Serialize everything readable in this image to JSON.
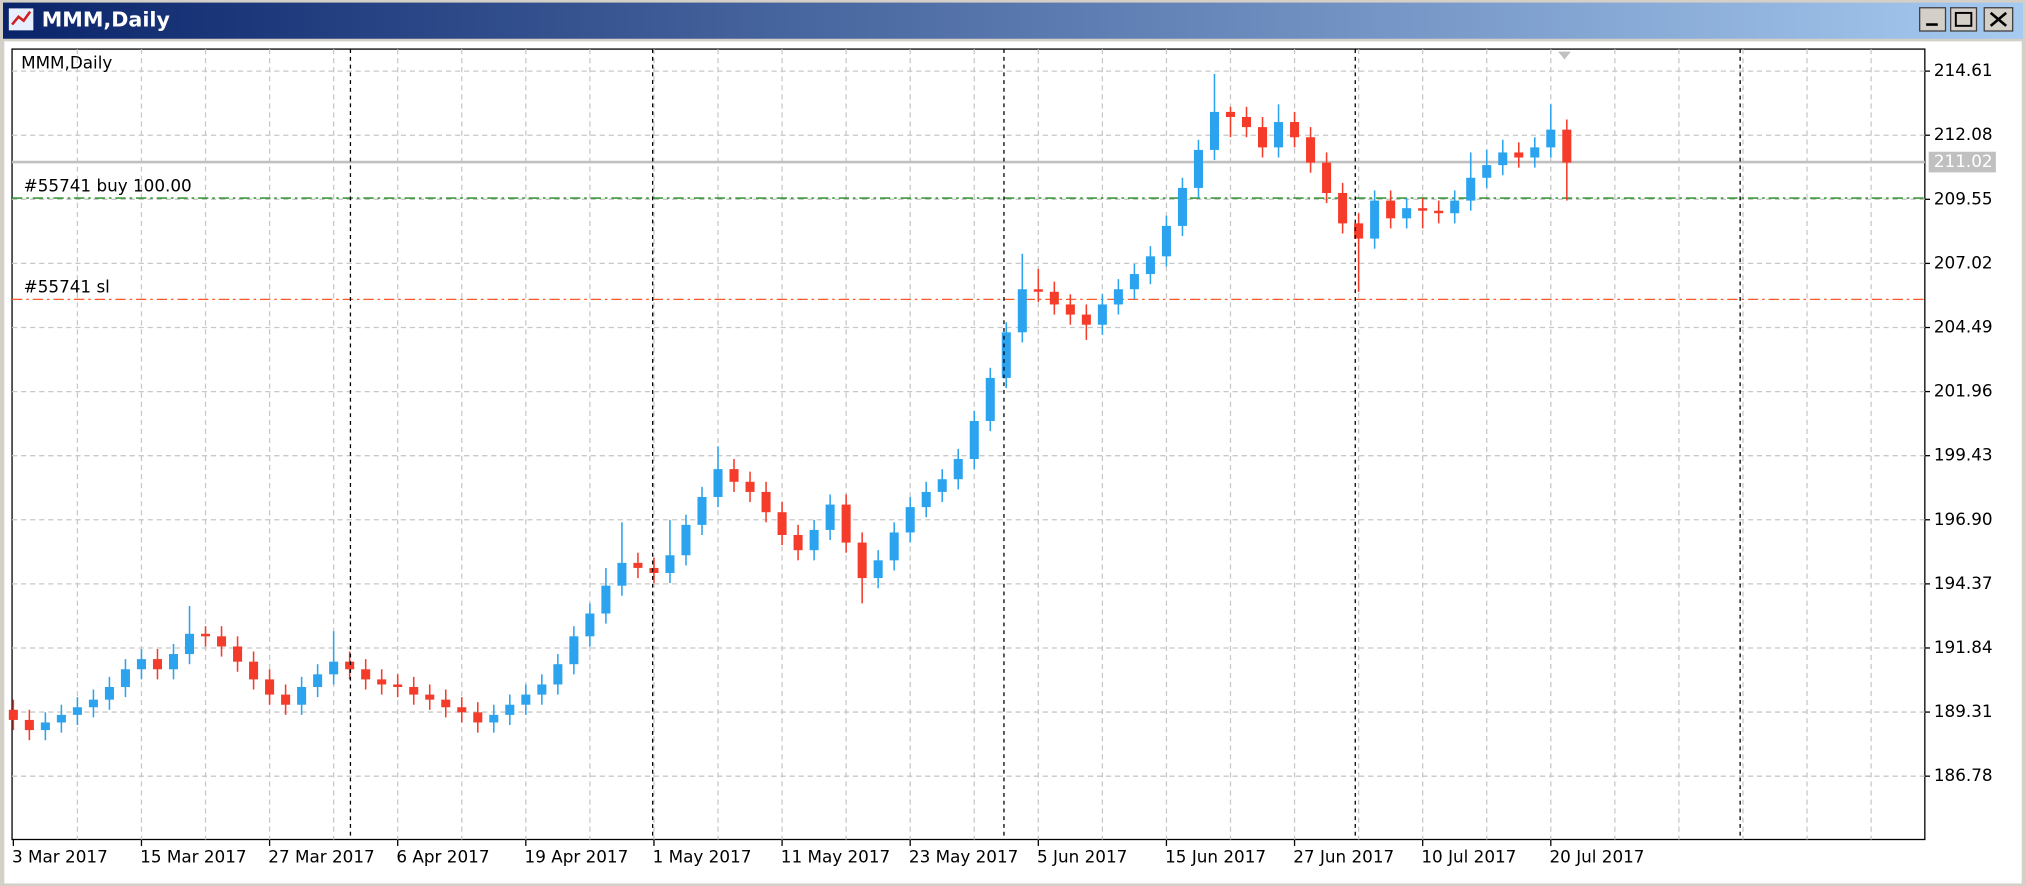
{
  "window": {
    "title": "MMM,Daily"
  },
  "chart_data": {
    "type": "candlestick",
    "title": "MMM,Daily",
    "up_color": "#2ba3ee",
    "down_color": "#f53b2a",
    "grid": true,
    "ylim": [
      184.28,
      215.48
    ],
    "yticks": [
      186.78,
      189.31,
      191.84,
      194.37,
      {
        "value": 196.9,
        "label": "196.90"
      },
      199.43,
      201.96,
      204.49,
      207.02,
      209.55,
      212.08,
      214.61
    ],
    "current_price": 211.02,
    "orders": [
      {
        "label": "#55741 buy 100.00",
        "level": 209.6,
        "color": "#1a8a1a"
      },
      {
        "label": "#55741 sl",
        "level": 205.6,
        "color": "#ff5a2a"
      }
    ],
    "categories": [
      "3 Mar 2017",
      null,
      null,
      null,
      null,
      null,
      null,
      null,
      "15 Mar 2017",
      null,
      null,
      null,
      null,
      null,
      null,
      null,
      "27 Mar 2017",
      null,
      null,
      null,
      null,
      null,
      null,
      null,
      "6 Apr 2017",
      null,
      null,
      null,
      null,
      null,
      null,
      null,
      "19 Apr 2017",
      null,
      null,
      null,
      null,
      null,
      null,
      null,
      "1 May 2017",
      null,
      null,
      null,
      null,
      null,
      null,
      null,
      "11 May 2017",
      null,
      null,
      null,
      null,
      null,
      null,
      null,
      "23 May 2017",
      null,
      null,
      null,
      null,
      null,
      null,
      null,
      "5 Jun 2017",
      null,
      null,
      null,
      null,
      null,
      null,
      null,
      "15 Jun 2017",
      null,
      null,
      null,
      null,
      null,
      null,
      null,
      "27 Jun 2017",
      null,
      null,
      null,
      null,
      null,
      null,
      null,
      "10 Jul 2017",
      null,
      null,
      null,
      null,
      null,
      null,
      null,
      "20 Jul 2017",
      null
    ],
    "open": [
      189.4,
      189.0,
      188.6,
      188.9,
      189.2,
      189.5,
      189.8,
      190.3,
      191.0,
      191.4,
      191.0,
      191.6,
      192.4,
      192.3,
      191.9,
      191.3,
      190.6,
      190.0,
      189.6,
      190.3,
      190.8,
      191.3,
      191.0,
      190.6,
      190.4,
      190.3,
      190.0,
      189.8,
      189.5,
      189.3,
      188.9,
      189.2,
      189.6,
      190.0,
      190.4,
      191.2,
      192.3,
      193.2,
      194.3,
      195.2,
      195.0,
      194.8,
      195.5,
      196.7,
      197.8,
      198.9,
      198.4,
      198.0,
      197.2,
      196.3,
      195.7,
      196.5,
      197.5,
      196.0,
      194.6,
      195.3,
      196.4,
      197.4,
      198.0,
      198.5,
      199.3,
      200.8,
      202.5,
      204.3,
      206.0,
      205.9,
      205.4,
      205.0,
      204.6,
      205.4,
      206.0,
      206.6,
      207.3,
      208.5,
      210.0,
      211.5,
      213.0,
      212.8,
      212.4,
      211.6,
      212.6,
      212.0,
      211.0,
      209.8,
      208.6,
      208.0,
      209.5,
      208.8,
      209.2,
      209.1,
      209.0,
      209.5,
      210.4,
      210.9,
      211.4,
      211.2,
      211.6,
      212.3
    ],
    "high": [
      189.8,
      189.4,
      189.3,
      189.6,
      189.9,
      190.2,
      190.7,
      191.4,
      191.8,
      191.8,
      192.0,
      193.5,
      192.7,
      192.7,
      192.3,
      191.7,
      191.0,
      190.4,
      190.7,
      191.2,
      192.5,
      191.7,
      191.4,
      191.0,
      190.8,
      190.7,
      190.4,
      190.2,
      189.9,
      189.7,
      189.6,
      190.0,
      190.4,
      190.8,
      191.6,
      192.7,
      193.6,
      195.0,
      196.8,
      195.6,
      195.4,
      196.9,
      197.1,
      198.2,
      199.8,
      199.3,
      198.8,
      198.4,
      197.6,
      196.7,
      196.9,
      197.9,
      197.9,
      196.4,
      195.7,
      196.8,
      197.8,
      198.4,
      198.9,
      199.7,
      201.2,
      202.9,
      204.7,
      207.4,
      206.8,
      206.3,
      205.8,
      205.4,
      205.8,
      206.4,
      207.0,
      207.7,
      208.9,
      210.4,
      211.9,
      214.5,
      213.2,
      213.2,
      212.8,
      213.3,
      213.0,
      212.4,
      211.4,
      210.2,
      209.0,
      209.9,
      209.9,
      209.6,
      209.6,
      209.5,
      209.9,
      211.4,
      211.5,
      211.9,
      211.8,
      212.0,
      213.3,
      212.7
    ],
    "low": [
      188.6,
      188.2,
      188.2,
      188.5,
      188.8,
      189.1,
      189.4,
      189.9,
      190.6,
      190.6,
      190.6,
      191.2,
      191.9,
      191.5,
      190.9,
      190.2,
      189.6,
      189.2,
      189.2,
      189.9,
      190.4,
      190.6,
      190.2,
      190.0,
      189.9,
      189.6,
      189.4,
      189.1,
      188.9,
      188.5,
      188.5,
      188.8,
      189.2,
      189.6,
      190.0,
      190.8,
      191.9,
      192.8,
      193.9,
      194.6,
      194.4,
      194.4,
      195.1,
      196.3,
      197.4,
      198.0,
      197.6,
      196.8,
      195.9,
      195.3,
      195.3,
      196.1,
      195.6,
      193.6,
      194.2,
      194.9,
      196.0,
      197.0,
      197.6,
      198.1,
      198.9,
      200.4,
      202.1,
      203.9,
      205.5,
      205.0,
      204.6,
      204.0,
      204.2,
      205.0,
      205.6,
      206.2,
      206.9,
      208.1,
      209.6,
      211.1,
      212.0,
      212.0,
      211.2,
      211.2,
      211.6,
      210.6,
      209.4,
      208.2,
      205.9,
      207.6,
      208.4,
      208.4,
      208.4,
      208.6,
      208.6,
      209.1,
      210.0,
      210.5,
      210.8,
      210.8,
      211.2,
      209.5
    ],
    "close": [
      189.0,
      188.6,
      188.9,
      189.2,
      189.5,
      189.8,
      190.3,
      191.0,
      191.4,
      191.0,
      191.6,
      192.4,
      192.3,
      191.9,
      191.3,
      190.6,
      190.0,
      189.6,
      190.3,
      190.8,
      191.3,
      191.0,
      190.6,
      190.4,
      190.3,
      190.0,
      189.8,
      189.5,
      189.3,
      188.9,
      189.2,
      189.6,
      190.0,
      190.4,
      191.2,
      192.3,
      193.2,
      194.3,
      195.2,
      195.0,
      194.8,
      195.5,
      196.7,
      197.8,
      198.9,
      198.4,
      198.0,
      197.2,
      196.3,
      195.7,
      196.5,
      197.5,
      196.0,
      194.6,
      195.3,
      196.4,
      197.4,
      198.0,
      198.5,
      199.3,
      200.8,
      202.5,
      204.3,
      206.0,
      205.9,
      205.4,
      205.0,
      204.6,
      205.4,
      206.0,
      206.6,
      207.3,
      208.5,
      210.0,
      211.5,
      213.0,
      212.8,
      212.4,
      211.6,
      212.6,
      212.0,
      211.0,
      209.8,
      208.6,
      208.0,
      209.5,
      208.8,
      209.2,
      209.1,
      209.0,
      209.5,
      210.4,
      210.9,
      211.4,
      211.2,
      211.6,
      212.3,
      211.0
    ]
  }
}
